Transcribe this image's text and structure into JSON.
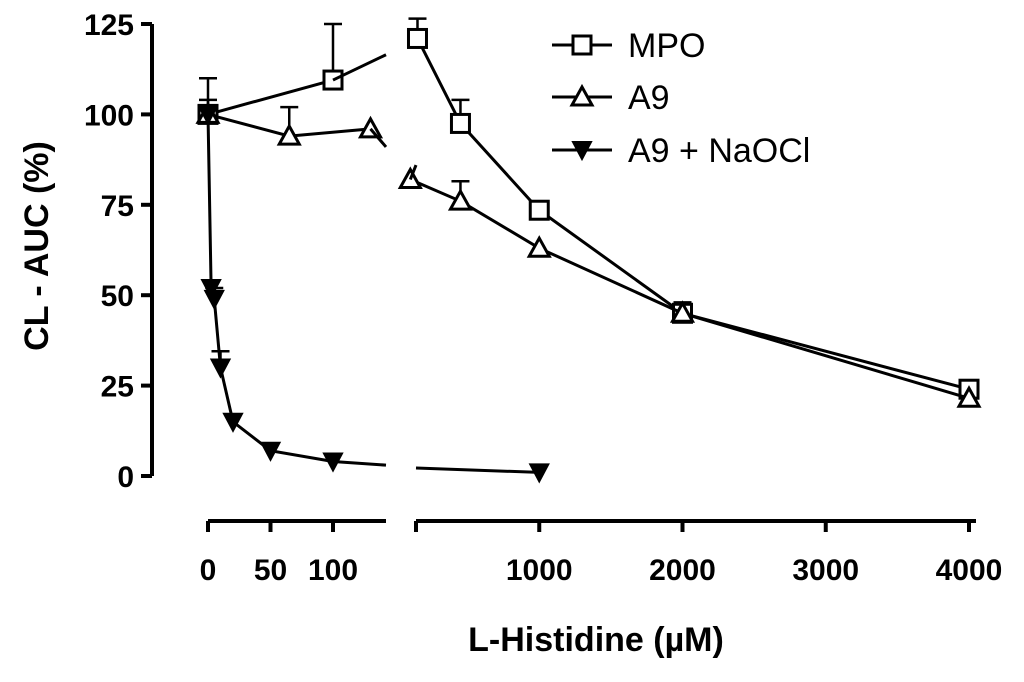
{
  "chart_data": {
    "type": "line",
    "ylabel": "CL - AUC (%)",
    "xlabel": "L-Histidine (µM)",
    "ylim": [
      0,
      125
    ],
    "yticks": [
      "0",
      "25",
      "50",
      "75",
      "100",
      "125"
    ],
    "x_axis_broken": true,
    "x_segments": [
      {
        "range": [
          0,
          150
        ],
        "ticks": [
          0,
          50,
          100
        ],
        "tick_labels": [
          "0",
          "50",
          "100"
        ]
      },
      {
        "range": [
          0,
          4000
        ],
        "ticks": [
          0,
          1000,
          2000,
          3000,
          4000
        ],
        "tick_labels": [
          "",
          "1000",
          "2000",
          "3000",
          "4000"
        ]
      }
    ],
    "legend_position": "top-right",
    "series": [
      {
        "name": "MPO",
        "marker": "open-square",
        "segment1": {
          "x": [
            0,
            100
          ],
          "y": [
            100,
            109.5
          ],
          "err": [
            4,
            15.5
          ]
        },
        "segment2": {
          "x": [
            150,
            450,
            1000,
            2000,
            4000
          ],
          "y": [
            121,
            97.5,
            73.5,
            45,
            24
          ],
          "err": [
            5.5,
            6.5,
            0,
            0,
            0
          ]
        }
      },
      {
        "name": "A9",
        "marker": "open-triangle",
        "segment1": {
          "x": [
            0,
            65,
            130
          ],
          "y": [
            100,
            94,
            96
          ],
          "err": [
            10,
            8,
            0
          ]
        },
        "segment2": {
          "x": [
            100,
            450,
            1000,
            2000,
            4000
          ],
          "y": [
            82,
            76,
            63,
            45,
            21.5
          ],
          "err": [
            0,
            5.5,
            0,
            3,
            0
          ]
        }
      },
      {
        "name": "A9 + NaOCl",
        "marker": "filled-triangle-down",
        "segment1": {
          "x": [
            0,
            2.5,
            5,
            10,
            20,
            50,
            100
          ],
          "y": [
            100,
            52,
            49,
            30,
            15,
            7,
            4
          ],
          "err": [
            0,
            0,
            3,
            4.5,
            0,
            0,
            0
          ]
        },
        "segment2": {
          "x": [
            1000
          ],
          "y": [
            1
          ],
          "err": [
            0
          ]
        }
      }
    ]
  }
}
